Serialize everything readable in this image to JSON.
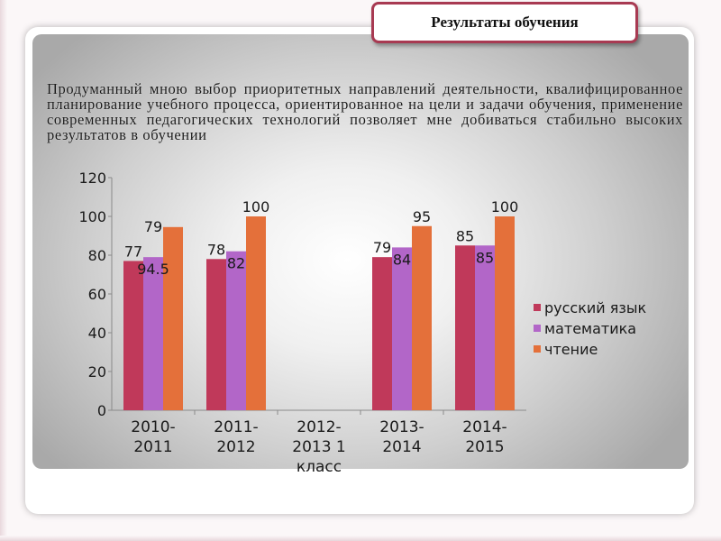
{
  "slide": {
    "title": "Результаты обучения",
    "description": "Продуманный мною выбор приоритетных направлений деятельности, квалифицированное планирование учебного процесса, ориентированное на цели и задачи обучения, применение современных педагогических технологий позволяет мне добиваться стабильно высоких результатов в обучении"
  },
  "colors": {
    "title_border": "#a83a52"
  },
  "chart_data": {
    "type": "bar",
    "categories": [
      "2010-2011",
      "2011-2012",
      "2012-2013 1 класс",
      "2013-2014",
      "2014-2015"
    ],
    "category_label_lines": [
      [
        "2010-",
        "2011"
      ],
      [
        "2011-",
        "2012"
      ],
      [
        "2012-",
        "2013 1",
        "класс"
      ],
      [
        "2013-",
        "2014"
      ],
      [
        "2014-",
        "2015"
      ]
    ],
    "series": [
      {
        "name": "русский язык",
        "color": "#c0395a",
        "values": [
          77,
          78,
          null,
          79,
          85
        ]
      },
      {
        "name": "математика",
        "color": "#b266c8",
        "values": [
          79,
          82,
          null,
          84,
          85
        ]
      },
      {
        "name": "чтение",
        "color": "#e4703a",
        "values": [
          94.5,
          100,
          null,
          95,
          100
        ]
      }
    ],
    "data_labels": [
      [
        {
          "text": "77",
          "series": 0,
          "pos": "above"
        },
        {
          "text": "79",
          "series": 1,
          "pos": "above-high"
        },
        {
          "text": "94.5",
          "series": 1,
          "pos": "inside"
        }
      ],
      [
        {
          "text": "78",
          "series": 0,
          "pos": "above"
        },
        {
          "text": "82",
          "series": 1,
          "pos": "inside"
        },
        {
          "text": "100",
          "series": 2,
          "pos": "above"
        }
      ],
      [],
      [
        {
          "text": "79",
          "series": 0,
          "pos": "above"
        },
        {
          "text": "84",
          "series": 1,
          "pos": "inside"
        },
        {
          "text": "95",
          "series": 2,
          "pos": "above"
        }
      ],
      [
        {
          "text": "85",
          "series": 0,
          "pos": "above"
        },
        {
          "text": "85",
          "series": 1,
          "pos": "inside"
        },
        {
          "text": "100",
          "series": 2,
          "pos": "above"
        }
      ]
    ],
    "yticks": [
      "0",
      "20",
      "40",
      "60",
      "80",
      "100",
      "120"
    ],
    "ylim": [
      0,
      120
    ],
    "grid": false,
    "legend_position": "right"
  }
}
